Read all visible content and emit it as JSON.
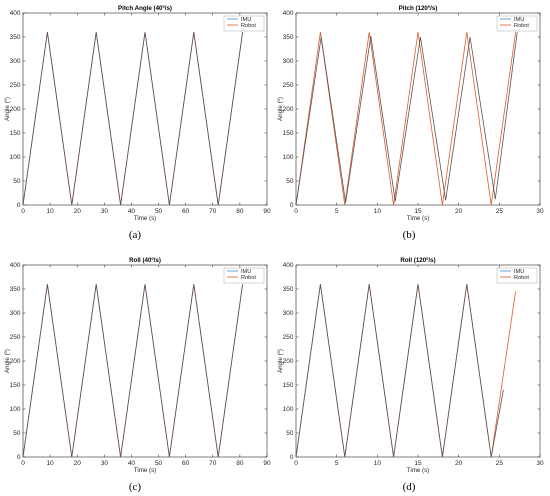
{
  "colors": {
    "imu": "#3a8fd0",
    "robot": "#e0592a",
    "axis": "#262626",
    "overlap": "#555555"
  },
  "chart_data": [
    {
      "type": "line",
      "caption": "(a)",
      "title": "Pitch Angle (40º/s)",
      "xlabel": "Time (s)",
      "ylabel": "Angle (º)",
      "xlim": [
        0,
        90
      ],
      "ylim": [
        0,
        400
      ],
      "xticks": [
        0,
        10,
        20,
        30,
        40,
        50,
        60,
        70,
        80,
        90
      ],
      "yticks": [
        0,
        50,
        100,
        150,
        200,
        250,
        300,
        350,
        400
      ],
      "grid": false,
      "legend": "top-right",
      "series": [
        {
          "name": "IMU",
          "x": [
            0,
            9,
            18,
            27,
            36,
            45,
            54,
            63,
            72,
            81
          ],
          "y": [
            0,
            360,
            0,
            360,
            0,
            360,
            0,
            360,
            0,
            360
          ]
        },
        {
          "name": "Robot",
          "x": [
            0,
            9,
            18,
            27,
            36,
            45,
            54,
            63,
            72,
            81
          ],
          "y": [
            0,
            360,
            0,
            360,
            0,
            360,
            0,
            360,
            0,
            360
          ]
        }
      ]
    },
    {
      "type": "line",
      "caption": "(b)",
      "title": "Pitch (120º/s)",
      "xlabel": "Time (s)",
      "ylabel": "Angle (º)",
      "xlim": [
        0,
        30
      ],
      "ylim": [
        0,
        400
      ],
      "xticks": [
        0,
        5,
        10,
        15,
        20,
        25,
        30
      ],
      "yticks": [
        0,
        50,
        100,
        150,
        200,
        250,
        300,
        350,
        400
      ],
      "grid": false,
      "legend": "top-right",
      "series": [
        {
          "name": "IMU",
          "x": [
            0,
            3.1,
            6.1,
            9.2,
            12.2,
            15.3,
            18.4,
            21.4,
            24.5,
            27.2
          ],
          "y": [
            0,
            350,
            5,
            352,
            8,
            350,
            10,
            350,
            12,
            360
          ]
        },
        {
          "name": "Robot",
          "x": [
            0,
            3,
            6,
            9,
            12,
            15,
            18,
            21,
            24,
            27
          ],
          "y": [
            0,
            360,
            0,
            360,
            0,
            360,
            0,
            360,
            0,
            360
          ]
        }
      ]
    },
    {
      "type": "line",
      "caption": "(c)",
      "title": "Roll (40º/s)",
      "xlabel": "Time (s)",
      "ylabel": "Angle (º)",
      "xlim": [
        0,
        90
      ],
      "ylim": [
        0,
        400
      ],
      "xticks": [
        0,
        10,
        20,
        30,
        40,
        50,
        60,
        70,
        80,
        90
      ],
      "yticks": [
        0,
        50,
        100,
        150,
        200,
        250,
        300,
        350,
        400
      ],
      "grid": false,
      "legend": "top-right",
      "series": [
        {
          "name": "IMU",
          "x": [
            0,
            9,
            18,
            27,
            36,
            45,
            54,
            63,
            72,
            81
          ],
          "y": [
            0,
            360,
            0,
            360,
            0,
            360,
            0,
            360,
            0,
            360
          ]
        },
        {
          "name": "Robot",
          "x": [
            0,
            9,
            18,
            27,
            36,
            45,
            54,
            63,
            72,
            81
          ],
          "y": [
            0,
            360,
            0,
            360,
            0,
            360,
            0,
            360,
            0,
            360
          ]
        }
      ]
    },
    {
      "type": "line",
      "caption": "(d)",
      "title": "Roll (120º/s)",
      "xlabel": "Time (s)",
      "ylabel": "Angle (º)",
      "xlim": [
        0,
        30
      ],
      "ylim": [
        0,
        400
      ],
      "xticks": [
        0,
        5,
        10,
        15,
        20,
        25,
        30
      ],
      "yticks": [
        0,
        50,
        100,
        150,
        200,
        250,
        300,
        350,
        400
      ],
      "grid": false,
      "legend": "top-right",
      "series": [
        {
          "name": "IMU",
          "x": [
            0,
            3,
            6,
            9,
            12,
            15,
            18,
            21,
            24,
            25.5
          ],
          "y": [
            0,
            360,
            0,
            360,
            0,
            360,
            0,
            360,
            0,
            140
          ]
        },
        {
          "name": "Robot",
          "x": [
            0,
            3,
            6,
            9,
            12,
            15,
            18,
            21,
            24,
            27
          ],
          "y": [
            0,
            360,
            0,
            360,
            0,
            360,
            0,
            360,
            0,
            345
          ]
        }
      ]
    }
  ]
}
